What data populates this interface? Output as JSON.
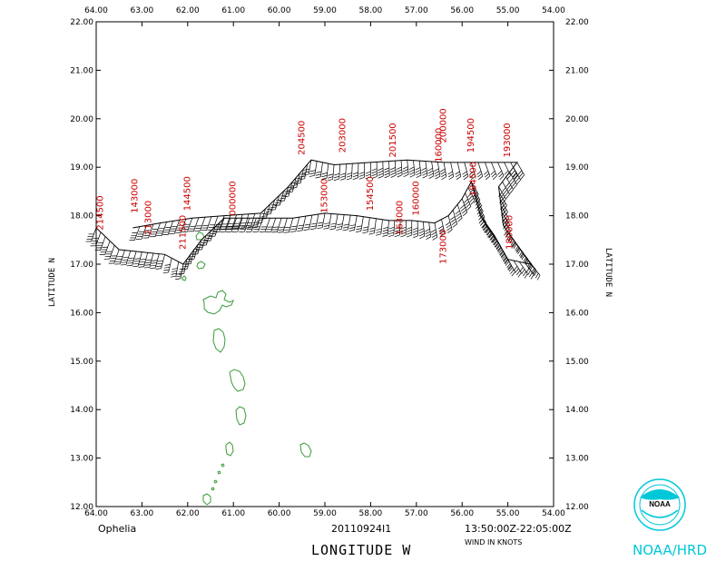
{
  "map": {
    "storm_name": "Ophelia",
    "date_id": "20110924I1",
    "time_range": "13:50:00Z-22:05:00Z",
    "wind_units": "WIND IN KNOTS",
    "x_axis_title": "LONGITUDE   W",
    "y_axis_title_left": "LATITUDE   N",
    "y_axis_title_right": "LATITUDE   N",
    "lon_range": [
      64.0,
      54.0
    ],
    "lat_range": [
      12.0,
      22.0
    ],
    "lon_ticks": [
      "64.00",
      "63.00",
      "62.00",
      "61.00",
      "60.00",
      "59.00",
      "58.00",
      "57.00",
      "56.00",
      "55.00",
      "54.00"
    ],
    "lat_ticks": [
      "12.00",
      "13.00",
      "14.00",
      "15.00",
      "16.00",
      "17.00",
      "18.00",
      "19.00",
      "20.00",
      "21.00",
      "22.00"
    ],
    "colors": {
      "land": "#3a9a3a",
      "labels": "#cc0000",
      "logo": "#00c8d8",
      "track": "#000000"
    },
    "logo_text": "NOAA",
    "org_label": "NOAA/HRD",
    "observation_labels": [
      {
        "text": "214500",
        "lon": 63.85,
        "lat": 17.7
      },
      {
        "text": "143000",
        "lon": 63.1,
        "lat": 18.05
      },
      {
        "text": "213000",
        "lon": 62.8,
        "lat": 17.6
      },
      {
        "text": "144500",
        "lon": 61.95,
        "lat": 18.1
      },
      {
        "text": "211500",
        "lon": 62.05,
        "lat": 17.3
      },
      {
        "text": "000000",
        "lon": 60.95,
        "lat": 18.0
      },
      {
        "text": "204500",
        "lon": 59.45,
        "lat": 19.25
      },
      {
        "text": "203000",
        "lon": 58.55,
        "lat": 19.3
      },
      {
        "text": "201500",
        "lon": 57.45,
        "lat": 19.2
      },
      {
        "text": "153000",
        "lon": 58.95,
        "lat": 18.05
      },
      {
        "text": "154500",
        "lon": 57.95,
        "lat": 18.1
      },
      {
        "text": "160000",
        "lon": 56.95,
        "lat": 18.0
      },
      {
        "text": "160000",
        "lon": 56.45,
        "lat": 19.1
      },
      {
        "text": "200000",
        "lon": 56.35,
        "lat": 19.5
      },
      {
        "text": "194500",
        "lon": 55.75,
        "lat": 19.3
      },
      {
        "text": "193000",
        "lon": 54.95,
        "lat": 19.2
      },
      {
        "text": "163000",
        "lon": 57.3,
        "lat": 17.6
      },
      {
        "text": "173000",
        "lon": 56.35,
        "lat": 17.0
      },
      {
        "text": "180000",
        "lon": 54.9,
        "lat": 17.3
      },
      {
        "text": "184500",
        "lon": 55.7,
        "lat": 18.4
      }
    ],
    "track_points": [
      {
        "lon": 64.0,
        "lat": 17.75,
        "dir": 200,
        "spd": 45
      },
      {
        "lon": 63.5,
        "lat": 17.3,
        "dir": 200,
        "spd": 45
      },
      {
        "lon": 63.0,
        "lat": 17.25,
        "dir": 195,
        "spd": 45
      },
      {
        "lon": 62.5,
        "lat": 17.2,
        "dir": 195,
        "spd": 40
      },
      {
        "lon": 62.2,
        "lat": 17.05,
        "dir": 190,
        "spd": 40
      },
      {
        "lon": 62.1,
        "lat": 17.0,
        "dir": 190,
        "spd": 35
      },
      {
        "lon": 61.7,
        "lat": 17.5,
        "dir": 195,
        "spd": 35
      },
      {
        "lon": 61.2,
        "lat": 17.95,
        "dir": 200,
        "spd": 35
      },
      {
        "lon": 60.8,
        "lat": 17.95,
        "dir": 200,
        "spd": 35
      },
      {
        "lon": 60.2,
        "lat": 17.95,
        "dir": 200,
        "spd": 35
      },
      {
        "lon": 59.7,
        "lat": 17.95,
        "dir": 195,
        "spd": 35
      },
      {
        "lon": 59.0,
        "lat": 18.05,
        "dir": 190,
        "spd": 35
      },
      {
        "lon": 58.3,
        "lat": 18.0,
        "dir": 190,
        "spd": 35
      },
      {
        "lon": 57.6,
        "lat": 17.9,
        "dir": 185,
        "spd": 40
      },
      {
        "lon": 57.1,
        "lat": 17.9,
        "dir": 180,
        "spd": 40
      },
      {
        "lon": 56.6,
        "lat": 17.85,
        "dir": 170,
        "spd": 45
      },
      {
        "lon": 56.3,
        "lat": 18.0,
        "dir": 165,
        "spd": 45
      },
      {
        "lon": 56.0,
        "lat": 18.35,
        "dir": 160,
        "spd": 45
      },
      {
        "lon": 55.8,
        "lat": 18.7,
        "dir": 150,
        "spd": 45
      },
      {
        "lon": 55.6,
        "lat": 18.0,
        "dir": 150,
        "spd": 50
      },
      {
        "lon": 55.3,
        "lat": 17.6,
        "dir": 150,
        "spd": 50
      },
      {
        "lon": 55.0,
        "lat": 17.1,
        "dir": 150,
        "spd": 45
      },
      {
        "lon": 54.5,
        "lat": 17.0,
        "dir": 140,
        "spd": 40
      },
      {
        "lon": 55.1,
        "lat": 17.8,
        "dir": 145,
        "spd": 40
      },
      {
        "lon": 55.2,
        "lat": 18.6,
        "dir": 150,
        "spd": 40
      },
      {
        "lon": 54.8,
        "lat": 19.1,
        "dir": 150,
        "spd": 35
      },
      {
        "lon": 55.5,
        "lat": 19.1,
        "dir": 160,
        "spd": 35
      },
      {
        "lon": 56.4,
        "lat": 19.1,
        "dir": 170,
        "spd": 40
      },
      {
        "lon": 57.2,
        "lat": 19.15,
        "dir": 175,
        "spd": 40
      },
      {
        "lon": 58.0,
        "lat": 19.1,
        "dir": 180,
        "spd": 35
      },
      {
        "lon": 58.8,
        "lat": 19.05,
        "dir": 185,
        "spd": 35
      },
      {
        "lon": 59.3,
        "lat": 19.15,
        "dir": 190,
        "spd": 35
      },
      {
        "lon": 59.8,
        "lat": 18.6,
        "dir": 195,
        "spd": 35
      },
      {
        "lon": 60.4,
        "lat": 18.05,
        "dir": 195,
        "spd": 35
      },
      {
        "lon": 61.2,
        "lat": 18.0,
        "dir": 200,
        "spd": 35
      },
      {
        "lon": 61.9,
        "lat": 17.95,
        "dir": 200,
        "spd": 40
      },
      {
        "lon": 62.6,
        "lat": 17.85,
        "dir": 200,
        "spd": 40
      },
      {
        "lon": 63.2,
        "lat": 17.75,
        "dir": 200,
        "spd": 45
      }
    ]
  }
}
